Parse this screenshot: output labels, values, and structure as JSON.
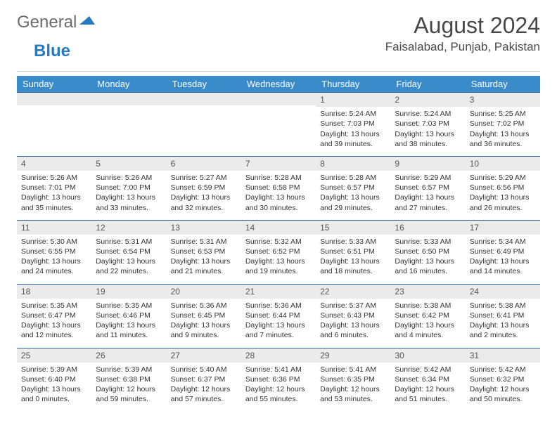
{
  "brand": {
    "general": "General",
    "blue": "Blue"
  },
  "title": "August 2024",
  "location": "Faisalabad, Punjab, Pakistan",
  "colors": {
    "header_bg": "#3a8bc9",
    "header_text": "#ffffff",
    "daynum_bg": "#ebebeb",
    "row_border": "#2a6aa0",
    "text": "#333333",
    "logo_gray": "#6b6b6b",
    "logo_blue": "#2a7bbd"
  },
  "day_headers": [
    "Sunday",
    "Monday",
    "Tuesday",
    "Wednesday",
    "Thursday",
    "Friday",
    "Saturday"
  ],
  "leading_blanks": 4,
  "days": [
    {
      "n": 1,
      "sr": "5:24 AM",
      "ss": "7:03 PM",
      "dl": "13 hours and 39 minutes."
    },
    {
      "n": 2,
      "sr": "5:24 AM",
      "ss": "7:03 PM",
      "dl": "13 hours and 38 minutes."
    },
    {
      "n": 3,
      "sr": "5:25 AM",
      "ss": "7:02 PM",
      "dl": "13 hours and 36 minutes."
    },
    {
      "n": 4,
      "sr": "5:26 AM",
      "ss": "7:01 PM",
      "dl": "13 hours and 35 minutes."
    },
    {
      "n": 5,
      "sr": "5:26 AM",
      "ss": "7:00 PM",
      "dl": "13 hours and 33 minutes."
    },
    {
      "n": 6,
      "sr": "5:27 AM",
      "ss": "6:59 PM",
      "dl": "13 hours and 32 minutes."
    },
    {
      "n": 7,
      "sr": "5:28 AM",
      "ss": "6:58 PM",
      "dl": "13 hours and 30 minutes."
    },
    {
      "n": 8,
      "sr": "5:28 AM",
      "ss": "6:57 PM",
      "dl": "13 hours and 29 minutes."
    },
    {
      "n": 9,
      "sr": "5:29 AM",
      "ss": "6:57 PM",
      "dl": "13 hours and 27 minutes."
    },
    {
      "n": 10,
      "sr": "5:29 AM",
      "ss": "6:56 PM",
      "dl": "13 hours and 26 minutes."
    },
    {
      "n": 11,
      "sr": "5:30 AM",
      "ss": "6:55 PM",
      "dl": "13 hours and 24 minutes."
    },
    {
      "n": 12,
      "sr": "5:31 AM",
      "ss": "6:54 PM",
      "dl": "13 hours and 22 minutes."
    },
    {
      "n": 13,
      "sr": "5:31 AM",
      "ss": "6:53 PM",
      "dl": "13 hours and 21 minutes."
    },
    {
      "n": 14,
      "sr": "5:32 AM",
      "ss": "6:52 PM",
      "dl": "13 hours and 19 minutes."
    },
    {
      "n": 15,
      "sr": "5:33 AM",
      "ss": "6:51 PM",
      "dl": "13 hours and 18 minutes."
    },
    {
      "n": 16,
      "sr": "5:33 AM",
      "ss": "6:50 PM",
      "dl": "13 hours and 16 minutes."
    },
    {
      "n": 17,
      "sr": "5:34 AM",
      "ss": "6:49 PM",
      "dl": "13 hours and 14 minutes."
    },
    {
      "n": 18,
      "sr": "5:35 AM",
      "ss": "6:47 PM",
      "dl": "13 hours and 12 minutes."
    },
    {
      "n": 19,
      "sr": "5:35 AM",
      "ss": "6:46 PM",
      "dl": "13 hours and 11 minutes."
    },
    {
      "n": 20,
      "sr": "5:36 AM",
      "ss": "6:45 PM",
      "dl": "13 hours and 9 minutes."
    },
    {
      "n": 21,
      "sr": "5:36 AM",
      "ss": "6:44 PM",
      "dl": "13 hours and 7 minutes."
    },
    {
      "n": 22,
      "sr": "5:37 AM",
      "ss": "6:43 PM",
      "dl": "13 hours and 6 minutes."
    },
    {
      "n": 23,
      "sr": "5:38 AM",
      "ss": "6:42 PM",
      "dl": "13 hours and 4 minutes."
    },
    {
      "n": 24,
      "sr": "5:38 AM",
      "ss": "6:41 PM",
      "dl": "13 hours and 2 minutes."
    },
    {
      "n": 25,
      "sr": "5:39 AM",
      "ss": "6:40 PM",
      "dl": "13 hours and 0 minutes."
    },
    {
      "n": 26,
      "sr": "5:39 AM",
      "ss": "6:38 PM",
      "dl": "12 hours and 59 minutes."
    },
    {
      "n": 27,
      "sr": "5:40 AM",
      "ss": "6:37 PM",
      "dl": "12 hours and 57 minutes."
    },
    {
      "n": 28,
      "sr": "5:41 AM",
      "ss": "6:36 PM",
      "dl": "12 hours and 55 minutes."
    },
    {
      "n": 29,
      "sr": "5:41 AM",
      "ss": "6:35 PM",
      "dl": "12 hours and 53 minutes."
    },
    {
      "n": 30,
      "sr": "5:42 AM",
      "ss": "6:34 PM",
      "dl": "12 hours and 51 minutes."
    },
    {
      "n": 31,
      "sr": "5:42 AM",
      "ss": "6:32 PM",
      "dl": "12 hours and 50 minutes."
    }
  ],
  "labels": {
    "sunrise": "Sunrise:",
    "sunset": "Sunset:",
    "daylight": "Daylight:"
  }
}
